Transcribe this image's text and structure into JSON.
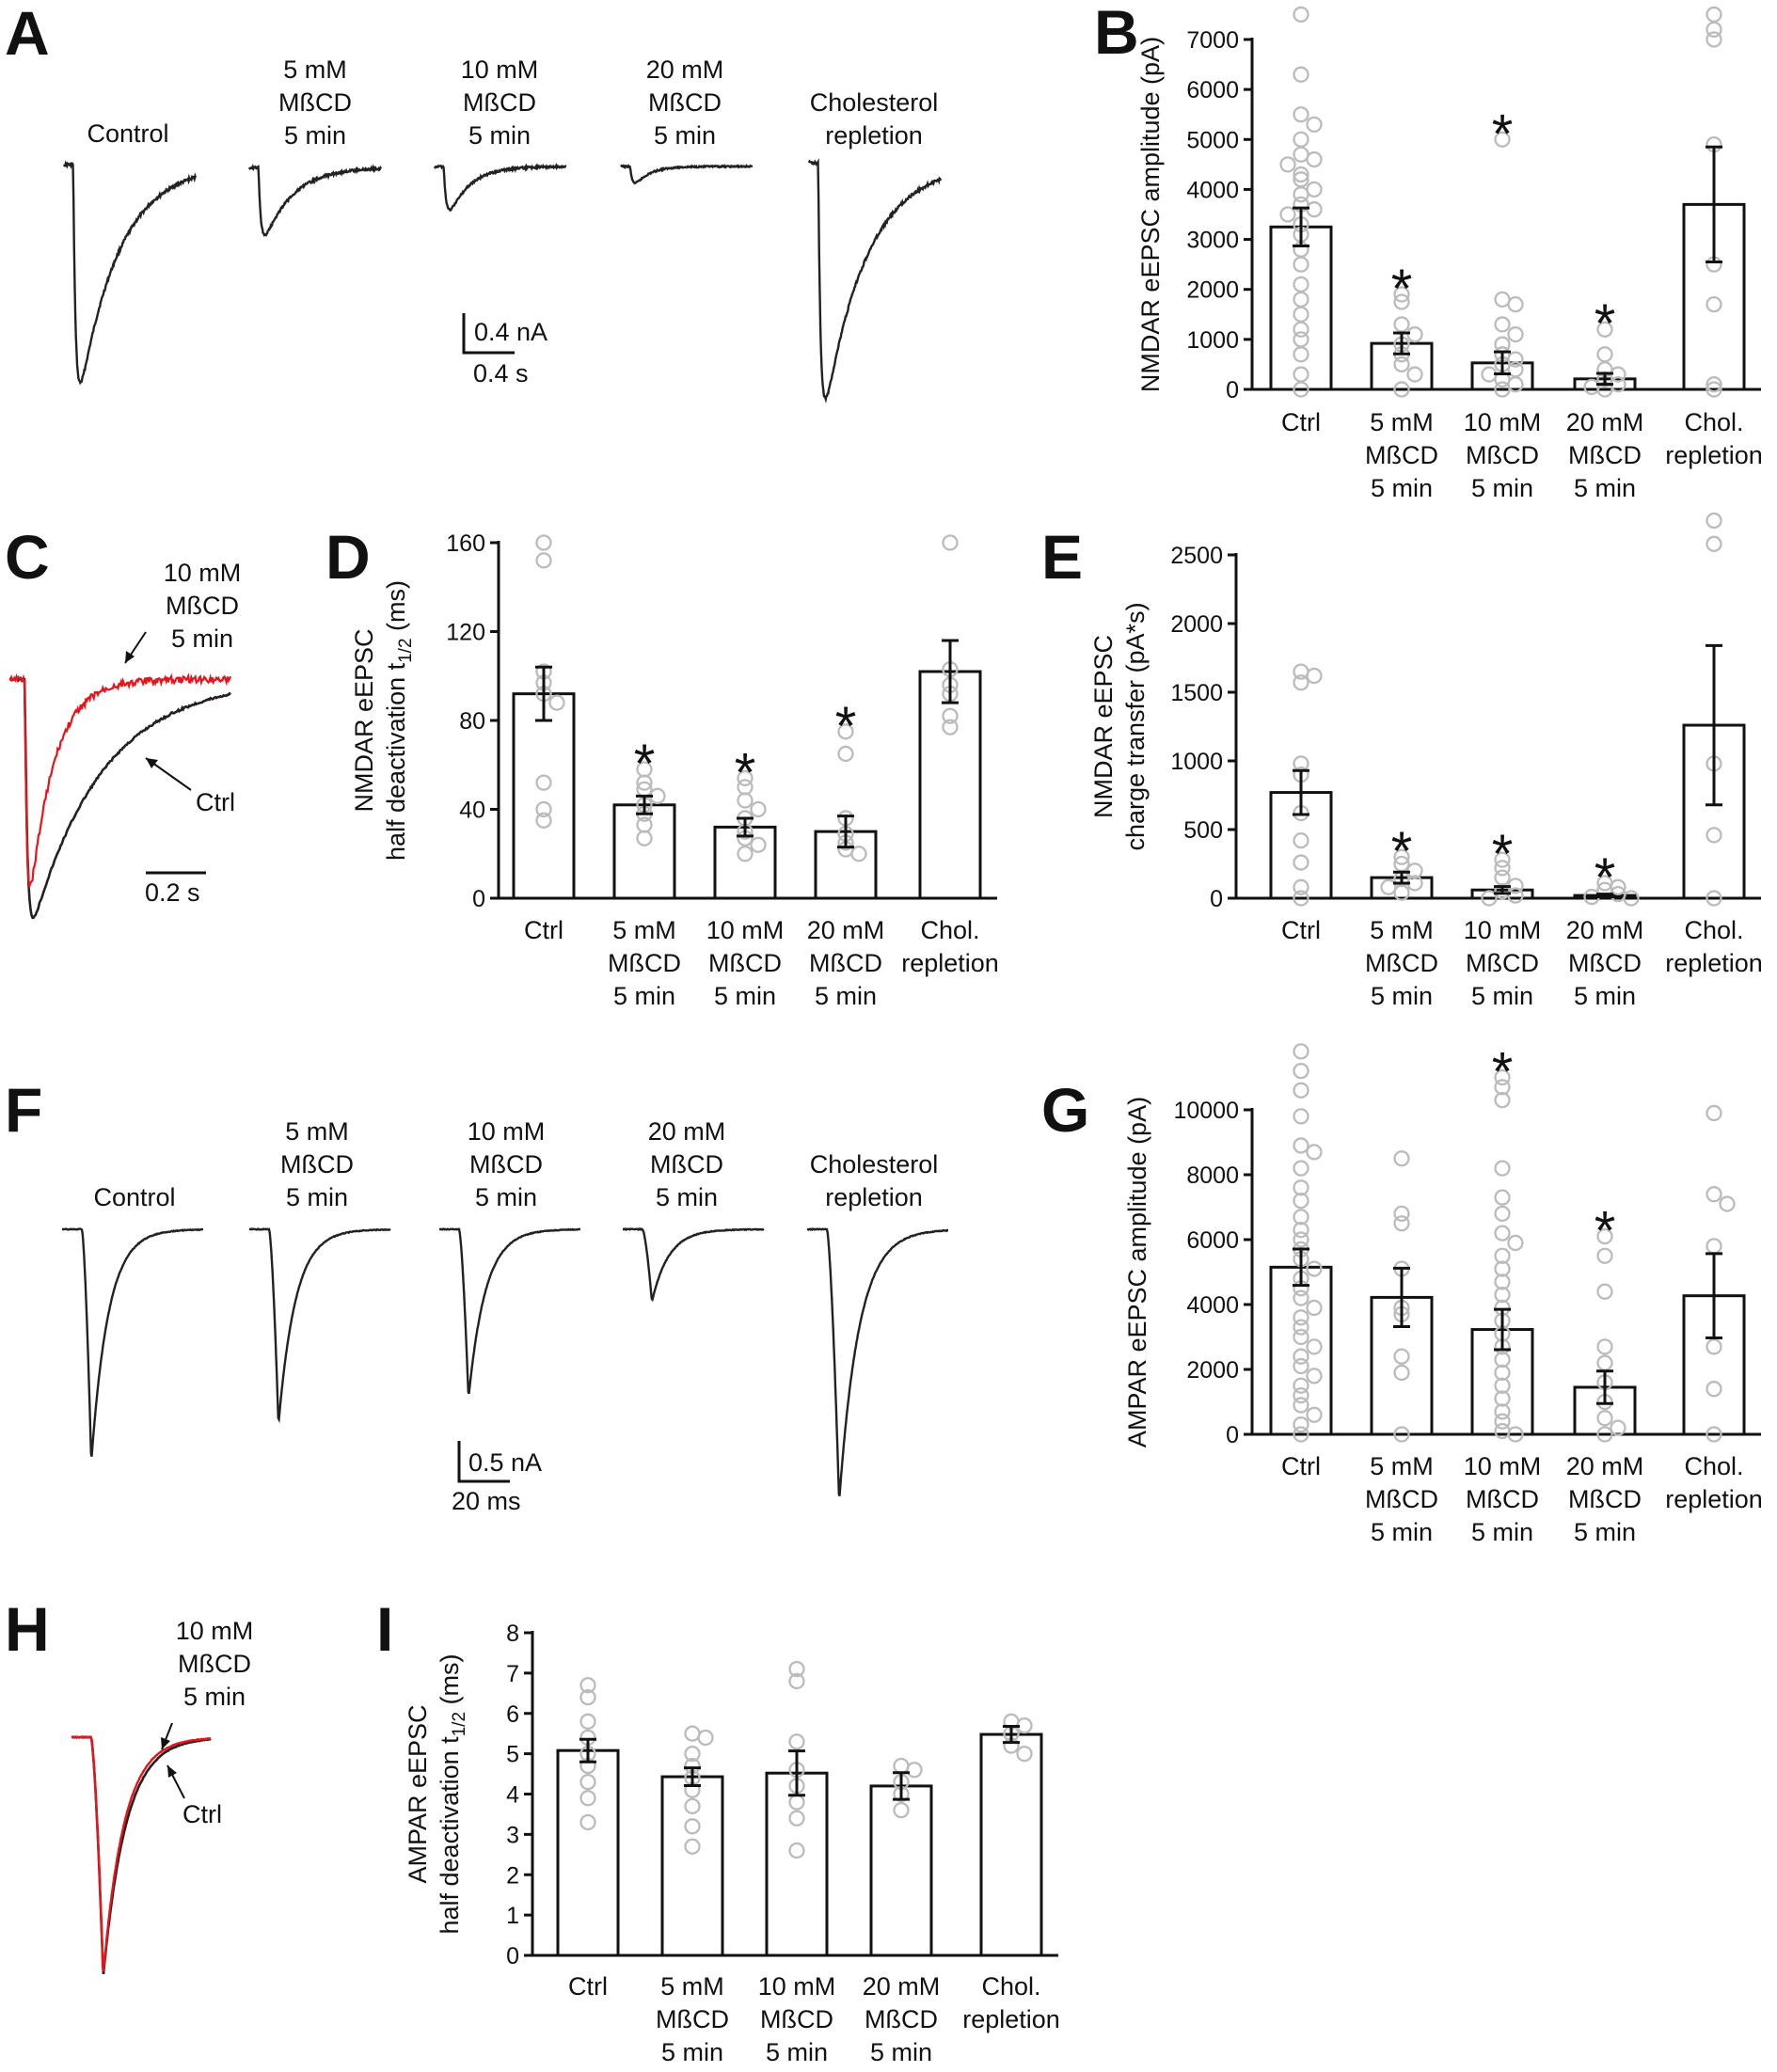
{
  "categories": [
    "Ctrl",
    "5 mM\nMßCD\n5 min",
    "10 mM\nMßCD\n5 min",
    "20 mM\nMßCD\n5 min",
    "Chol.\nrepletion"
  ],
  "trace_labels": [
    "Control",
    "5 mM\nMßCD\n5 min",
    "10 mM\nMßCD\n5 min",
    "20 mM\nMßCD\n5 min",
    "Cholesterol\nrepletion"
  ],
  "overlay_labels": {
    "treated": "10 mM\nMßCD\n5 min",
    "control": "Ctrl"
  },
  "colors": {
    "treated_trace": "#e8141b",
    "control_trace": "#222222",
    "points": "#bbbbbb"
  },
  "panels": {
    "A": {
      "label": "A",
      "scale_y": "0.4 nA",
      "scale_x": "0.4 s"
    },
    "C": {
      "label": "C",
      "scale_x": "0.2 s"
    },
    "F": {
      "label": "F",
      "scale_y": "0.5 nA",
      "scale_x": "20 ms"
    },
    "H": {
      "label": "H"
    }
  },
  "chart_data": [
    {
      "id": "B",
      "panel_label": "B",
      "type": "bar",
      "ylabel": "NMDAR eEPSC amplitude (pA)",
      "ylim": [
        0,
        7000
      ],
      "ticks": [
        0,
        1000,
        2000,
        3000,
        4000,
        5000,
        6000,
        7000
      ],
      "values": [
        3250,
        920,
        530,
        210,
        3700
      ],
      "errors": [
        380,
        210,
        220,
        110,
        1150
      ],
      "significant": [
        false,
        true,
        true,
        true,
        false
      ],
      "points": [
        [
          7500,
          6300,
          5500,
          5300,
          5000,
          4700,
          4600,
          4500,
          4300,
          4200,
          4000,
          3900,
          3700,
          3600,
          3500,
          3300,
          3100,
          2800,
          2500,
          2100,
          1800,
          1500,
          1200,
          1000,
          700,
          300,
          0
        ],
        [
          1900,
          1750,
          1300,
          1100,
          900,
          700,
          500,
          300,
          0
        ],
        [
          5000,
          1800,
          1700,
          1300,
          1100,
          900,
          700,
          600,
          500,
          400,
          300,
          200,
          100,
          0
        ],
        [
          1200,
          700,
          400,
          300,
          200,
          100,
          50,
          0
        ],
        [
          7500,
          7200,
          7000,
          4900,
          2500,
          1700,
          100,
          0
        ]
      ]
    },
    {
      "id": "D",
      "panel_label": "D",
      "type": "bar",
      "ylabel": [
        "NMDAR eEPSC",
        "half deactivation t"
      ],
      "ylabel_sub": "1/2",
      "ylabel_unit": " (ms)",
      "ylim": [
        0,
        160
      ],
      "ticks": [
        0,
        40,
        80,
        120,
        160
      ],
      "values": [
        92,
        42,
        32,
        30,
        102
      ],
      "errors": [
        12,
        4,
        4,
        7,
        14
      ],
      "significant": [
        false,
        true,
        true,
        true,
        false
      ],
      "points": [
        [
          160,
          152,
          102,
          97,
          92,
          88,
          52,
          40,
          35
        ],
        [
          58,
          52,
          49,
          46,
          42,
          38,
          33,
          27
        ],
        [
          54,
          50,
          44,
          40,
          36,
          30,
          27,
          24,
          20
        ],
        [
          75,
          65,
          36,
          29,
          25,
          22,
          20
        ],
        [
          160,
          103,
          96,
          92,
          82,
          77
        ]
      ]
    },
    {
      "id": "E",
      "panel_label": "E",
      "type": "bar",
      "ylabel": [
        "NMDAR eEPSC",
        "charge transfer (pA*s)"
      ],
      "ylim": [
        0,
        2500
      ],
      "ticks": [
        0,
        500,
        1000,
        1500,
        2000,
        2500
      ],
      "values": [
        770,
        150,
        60,
        20,
        1260
      ],
      "errors": [
        160,
        40,
        25,
        10,
        580
      ],
      "significant": [
        false,
        true,
        true,
        true,
        false
      ],
      "points": [
        [
          1650,
          1620,
          1570,
          980,
          900,
          620,
          420,
          260,
          80,
          0
        ],
        [
          300,
          250,
          200,
          140,
          110,
          80,
          40
        ],
        [
          280,
          220,
          150,
          90,
          50,
          20,
          0
        ],
        [
          110,
          80,
          60,
          30,
          10,
          0
        ],
        [
          2750,
          2580,
          980,
          460,
          0
        ]
      ]
    },
    {
      "id": "G",
      "panel_label": "G",
      "type": "bar",
      "ylabel": "AMPAR eEPSC amplitude (pA)",
      "ylim": [
        0,
        10000
      ],
      "ticks": [
        0,
        2000,
        4000,
        6000,
        8000,
        10000
      ],
      "values": [
        5150,
        4220,
        3230,
        1450,
        4270
      ],
      "errors": [
        560,
        900,
        620,
        500,
        1300
      ],
      "significant": [
        false,
        false,
        true,
        true,
        false
      ],
      "points": [
        [
          11800,
          11200,
          10600,
          9800,
          8900,
          8700,
          8200,
          7600,
          7200,
          6700,
          6300,
          6000,
          5700,
          5400,
          5100,
          4800,
          4500,
          4200,
          3900,
          3600,
          3300,
          3000,
          2700,
          2400,
          2100,
          1800,
          1500,
          1200,
          900,
          600,
          300,
          0
        ],
        [
          8500,
          6800,
          6500,
          5100,
          3900,
          3700,
          2400,
          1900,
          0
        ],
        [
          11000,
          10700,
          10300,
          8200,
          7300,
          6800,
          6200,
          5900,
          5500,
          5100,
          4700,
          4300,
          3900,
          3500,
          3100,
          2700,
          2300,
          1900,
          1500,
          1100,
          700,
          400,
          100,
          0
        ],
        [
          6100,
          5500,
          4400,
          2700,
          2200,
          1600,
          1000,
          500,
          200,
          0
        ],
        [
          9900,
          7400,
          7100,
          5800,
          2700,
          1400,
          0
        ]
      ]
    },
    {
      "id": "I",
      "panel_label": "I",
      "type": "bar",
      "ylabel": [
        "AMPAR eEPSC",
        "half deactivation t"
      ],
      "ylabel_sub": "1/2",
      "ylabel_unit": " (ms)",
      "ylim": [
        0,
        8
      ],
      "ticks": [
        0,
        1,
        2,
        3,
        4,
        5,
        6,
        7,
        8
      ],
      "values": [
        5.08,
        4.43,
        4.52,
        4.2,
        5.48
      ],
      "errors": [
        0.28,
        0.22,
        0.55,
        0.33,
        0.2
      ],
      "significant": [
        false,
        false,
        false,
        false,
        false
      ],
      "points": [
        [
          6.7,
          6.4,
          5.8,
          5.4,
          5.0,
          4.7,
          4.3,
          3.9,
          3.3
        ],
        [
          5.5,
          5.4,
          5.0,
          4.7,
          4.4,
          4.1,
          3.7,
          3.2,
          2.7
        ],
        [
          7.1,
          6.8,
          5.3,
          4.6,
          4.2,
          3.8,
          3.4,
          2.6
        ],
        [
          4.7,
          4.6,
          4.3,
          4.0,
          3.6
        ],
        [
          5.8,
          5.7,
          5.5,
          5.2,
          5.0
        ]
      ]
    }
  ]
}
